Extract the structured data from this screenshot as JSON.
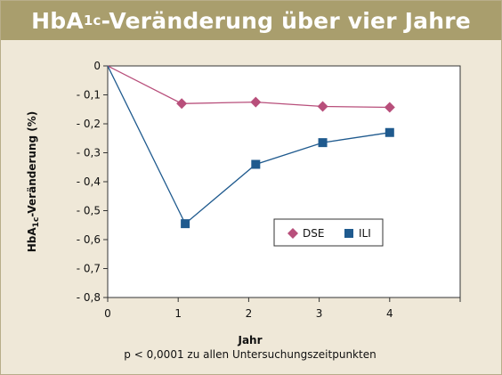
{
  "chart_data": {
    "type": "line",
    "title_main": "HbA",
    "title_sub": "1c",
    "title_rest": "-Veränderung über vier Jahre",
    "ylabel_main": "HbA",
    "ylabel_sub": "1c",
    "ylabel_rest": "-Veränderung (%)",
    "xlabel": "Jahr",
    "note": "p < 0,0001 zu allen Untersuchungszeitpunkten",
    "xlim": [
      0,
      5
    ],
    "ylim": [
      -0.8,
      0
    ],
    "x_ticks": [
      "0",
      "1",
      "2",
      "3",
      "4"
    ],
    "y_ticks": [
      "0",
      "- 0,1",
      "- 0,2",
      "- 0,3",
      "- 0,4",
      "- 0,5",
      "- 0,6",
      "- 0,7",
      "- 0,8"
    ],
    "grid": false,
    "legend_position": "center-right",
    "series": [
      {
        "name": "DSE",
        "marker": "diamond",
        "color": "#b84f7b",
        "points": [
          [
            0,
            0
          ],
          [
            1.05,
            -0.13
          ],
          [
            2.1,
            -0.125
          ],
          [
            3.05,
            -0.14
          ],
          [
            4.0,
            -0.143
          ]
        ]
      },
      {
        "name": "ILI",
        "marker": "square",
        "color": "#1f5a8e",
        "points": [
          [
            0,
            0
          ],
          [
            1.1,
            -0.545
          ],
          [
            2.1,
            -0.34
          ],
          [
            3.05,
            -0.265
          ],
          [
            4.0,
            -0.23
          ]
        ]
      }
    ]
  }
}
